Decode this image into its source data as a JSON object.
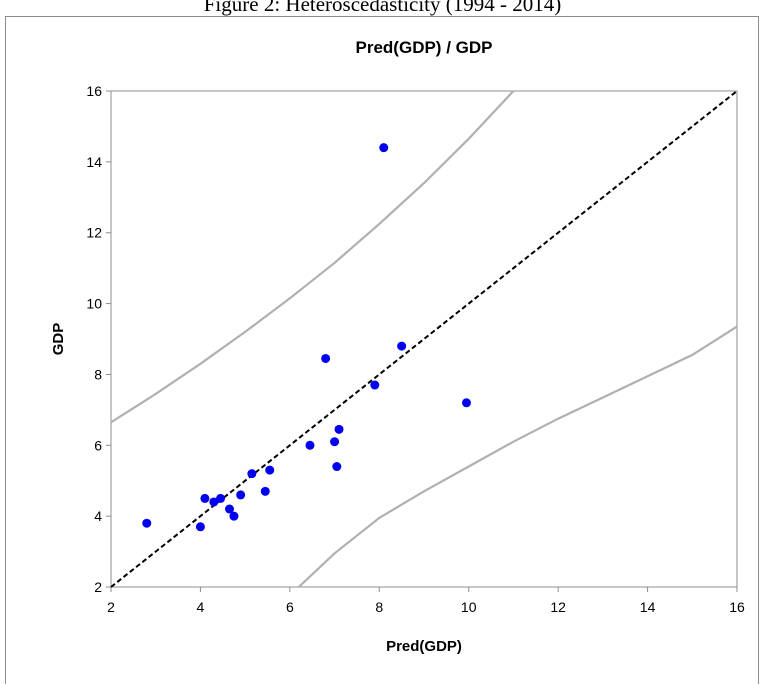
{
  "figure_caption": "Figure 2: Heteroscedasticity (1994 - 2014)",
  "chart_data": {
    "type": "scatter",
    "title": "Pred(GDP) / GDP",
    "xlabel": "Pred(GDP)",
    "ylabel": "GDP",
    "xlim": [
      2,
      16
    ],
    "ylim": [
      2,
      16
    ],
    "xticks": [
      2,
      4,
      6,
      8,
      10,
      12,
      14,
      16
    ],
    "yticks": [
      2,
      4,
      6,
      8,
      10,
      12,
      14,
      16
    ],
    "grid": false,
    "legend": "none",
    "points": {
      "color": "#0000ee",
      "x": [
        2.8,
        4.0,
        4.1,
        4.3,
        4.45,
        4.65,
        4.75,
        4.9,
        5.15,
        5.45,
        5.55,
        6.45,
        6.8,
        7.0,
        7.05,
        7.1,
        7.9,
        8.1,
        8.5,
        9.95
      ],
      "y": [
        3.8,
        3.7,
        4.5,
        4.4,
        4.5,
        4.2,
        4.0,
        4.6,
        5.2,
        4.7,
        5.3,
        6.0,
        8.45,
        6.1,
        5.4,
        6.45,
        7.7,
        14.4,
        8.8,
        7.2
      ]
    },
    "reference_line": {
      "style": "dashed",
      "color": "#000000",
      "x": [
        2,
        16
      ],
      "y": [
        2,
        16
      ]
    },
    "upper_band": {
      "color": "#b0b0b0",
      "x": [
        2,
        3,
        4,
        5,
        6,
        7,
        8,
        9,
        10,
        11
      ],
      "y": [
        6.65,
        7.45,
        8.3,
        9.2,
        10.15,
        11.15,
        12.25,
        13.4,
        14.65,
        16.0
      ]
    },
    "lower_band": {
      "color": "#b0b0b0",
      "x": [
        6.2,
        7,
        8,
        9,
        10,
        11,
        12,
        13,
        14,
        15,
        16
      ],
      "y": [
        2.0,
        2.95,
        3.95,
        4.7,
        5.4,
        6.1,
        6.75,
        7.35,
        7.95,
        8.55,
        9.35
      ]
    }
  }
}
